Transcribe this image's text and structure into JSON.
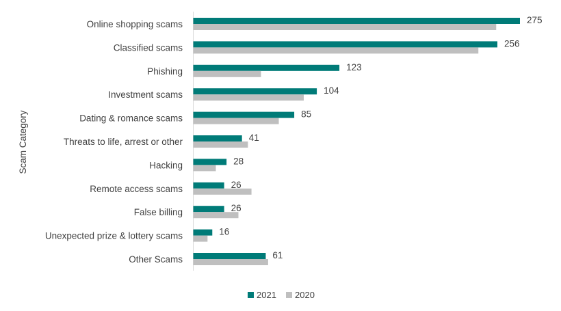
{
  "chart_data": {
    "type": "bar",
    "orientation": "horizontal",
    "ylabel": "Scam Category",
    "xlabel": "",
    "categories": [
      "Online shopping scams",
      "Classified scams",
      "Phishing",
      "Investment scams",
      "Dating & romance scams",
      "Threats to life, arrest or other",
      "Hacking",
      "Remote access scams",
      "False billing",
      "Unexpected prize & lottery scams",
      "Other Scams"
    ],
    "series": [
      {
        "name": "2021",
        "color": "#007b78",
        "values": [
          275,
          256,
          123,
          104,
          85,
          41,
          28,
          26,
          26,
          16,
          61
        ],
        "data_labels": true
      },
      {
        "name": "2020",
        "color": "#bfbfbf",
        "values": [
          255,
          240,
          57,
          93,
          72,
          46,
          19,
          49,
          38,
          12,
          63
        ],
        "data_labels": false
      }
    ],
    "xlim": [
      0,
      275
    ],
    "grid": false,
    "legend": "bottom"
  }
}
